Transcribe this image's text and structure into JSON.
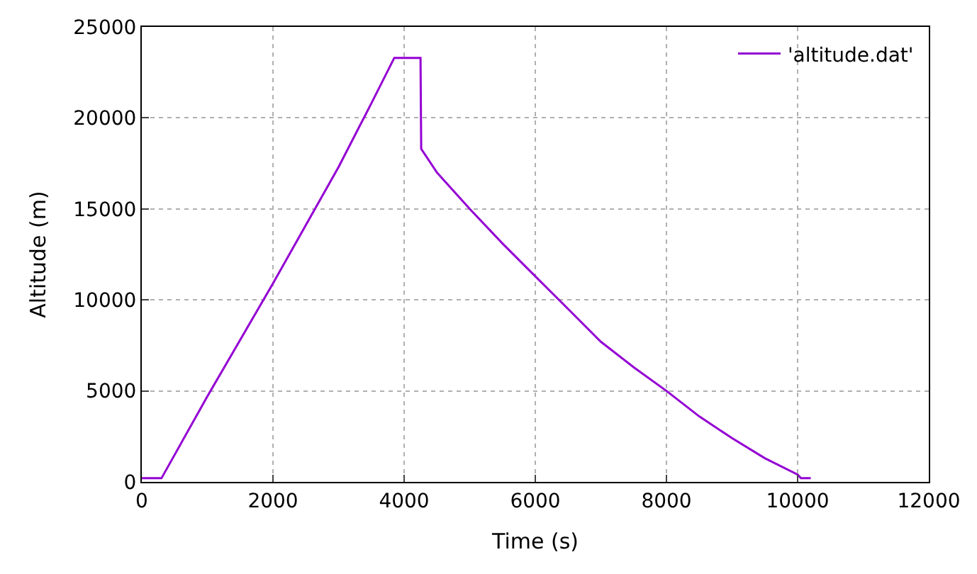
{
  "chart_data": {
    "type": "line",
    "xlabel": "Time (s)",
    "ylabel": "Altitude (m)",
    "xlim": [
      0,
      12000
    ],
    "xticks": [
      0,
      2000,
      4000,
      6000,
      8000,
      10000,
      12000
    ],
    "ylim": [
      0,
      25000
    ],
    "yticks": [
      0,
      5000,
      10000,
      15000,
      20000,
      25000
    ],
    "grid": true,
    "legend": "top right",
    "line_style": "solid",
    "marker": "none",
    "series": [
      {
        "name": "'altitude.dat'",
        "color": "#9400d3",
        "x": [
          0,
          300,
          1000,
          2000,
          3000,
          3300,
          3500,
          3850,
          4250,
          4260,
          4500,
          5000,
          5500,
          6000,
          6500,
          7000,
          7500,
          8000,
          8500,
          9000,
          9500,
          10000,
          10050,
          10200
        ],
        "values": [
          200,
          200,
          4700,
          10900,
          17300,
          19400,
          20800,
          23300,
          23300,
          18300,
          17000,
          15000,
          13100,
          11300,
          9500,
          7700,
          6300,
          5000,
          3600,
          2400,
          1300,
          400,
          200,
          200
        ]
      }
    ]
  }
}
